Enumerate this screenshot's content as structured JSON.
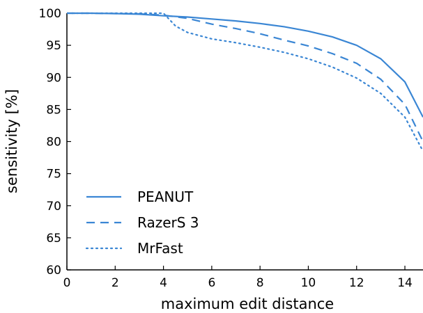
{
  "chart_data": {
    "type": "line",
    "title": "",
    "xlabel": "maximum edit distance",
    "ylabel": "sensitivity [%]",
    "xlim": [
      0,
      14.75
    ],
    "ylim": [
      60,
      100
    ],
    "x_ticks": [
      0,
      2,
      4,
      6,
      8,
      10,
      12,
      14
    ],
    "y_ticks": [
      60,
      65,
      70,
      75,
      80,
      85,
      90,
      95,
      100
    ],
    "x_tick_labels": [
      "0",
      "2",
      "4",
      "6",
      "8",
      "10",
      "12",
      "14"
    ],
    "y_tick_labels": [
      "60",
      "65",
      "70",
      "75",
      "80",
      "85",
      "90",
      "95",
      "100"
    ],
    "grid": false,
    "legend_position": "bottom-left",
    "line_color": "#3a86d4",
    "series": [
      {
        "name": "PEANUT",
        "style": "solid",
        "points": [
          [
            0,
            100
          ],
          [
            1,
            100
          ],
          [
            2,
            99.95
          ],
          [
            3,
            99.85
          ],
          [
            4,
            99.6
          ],
          [
            5,
            99.4
          ],
          [
            6,
            99.1
          ],
          [
            7,
            98.8
          ],
          [
            8,
            98.4
          ],
          [
            9,
            97.9
          ],
          [
            10,
            97.2
          ],
          [
            11,
            96.3
          ],
          [
            12,
            95.0
          ],
          [
            13,
            92.9
          ],
          [
            14,
            89.3
          ],
          [
            14.75,
            83.8
          ]
        ]
      },
      {
        "name": "RazerS 3",
        "style": "dashed",
        "points": [
          [
            0,
            100
          ],
          [
            1,
            100
          ],
          [
            2,
            99.95
          ],
          [
            3,
            99.9
          ],
          [
            4,
            99.7
          ],
          [
            5,
            99.2
          ],
          [
            6,
            98.3
          ],
          [
            7,
            97.6
          ],
          [
            8,
            96.8
          ],
          [
            9,
            95.8
          ],
          [
            10,
            94.9
          ],
          [
            11,
            93.7
          ],
          [
            12,
            92.2
          ],
          [
            13,
            89.7
          ],
          [
            14,
            85.8
          ],
          [
            14.75,
            80.0
          ]
        ]
      },
      {
        "name": "MrFast",
        "style": "dotted",
        "points": [
          [
            0,
            100
          ],
          [
            1,
            100
          ],
          [
            2,
            100
          ],
          [
            3,
            100
          ],
          [
            4,
            100
          ],
          [
            4.5,
            98.0
          ],
          [
            5,
            97.0
          ],
          [
            6,
            96.0
          ],
          [
            7,
            95.4
          ],
          [
            8,
            94.7
          ],
          [
            9,
            93.9
          ],
          [
            10,
            92.9
          ],
          [
            11,
            91.6
          ],
          [
            12,
            89.9
          ],
          [
            13,
            87.5
          ],
          [
            14,
            83.8
          ],
          [
            14.75,
            78.5
          ]
        ]
      }
    ]
  }
}
